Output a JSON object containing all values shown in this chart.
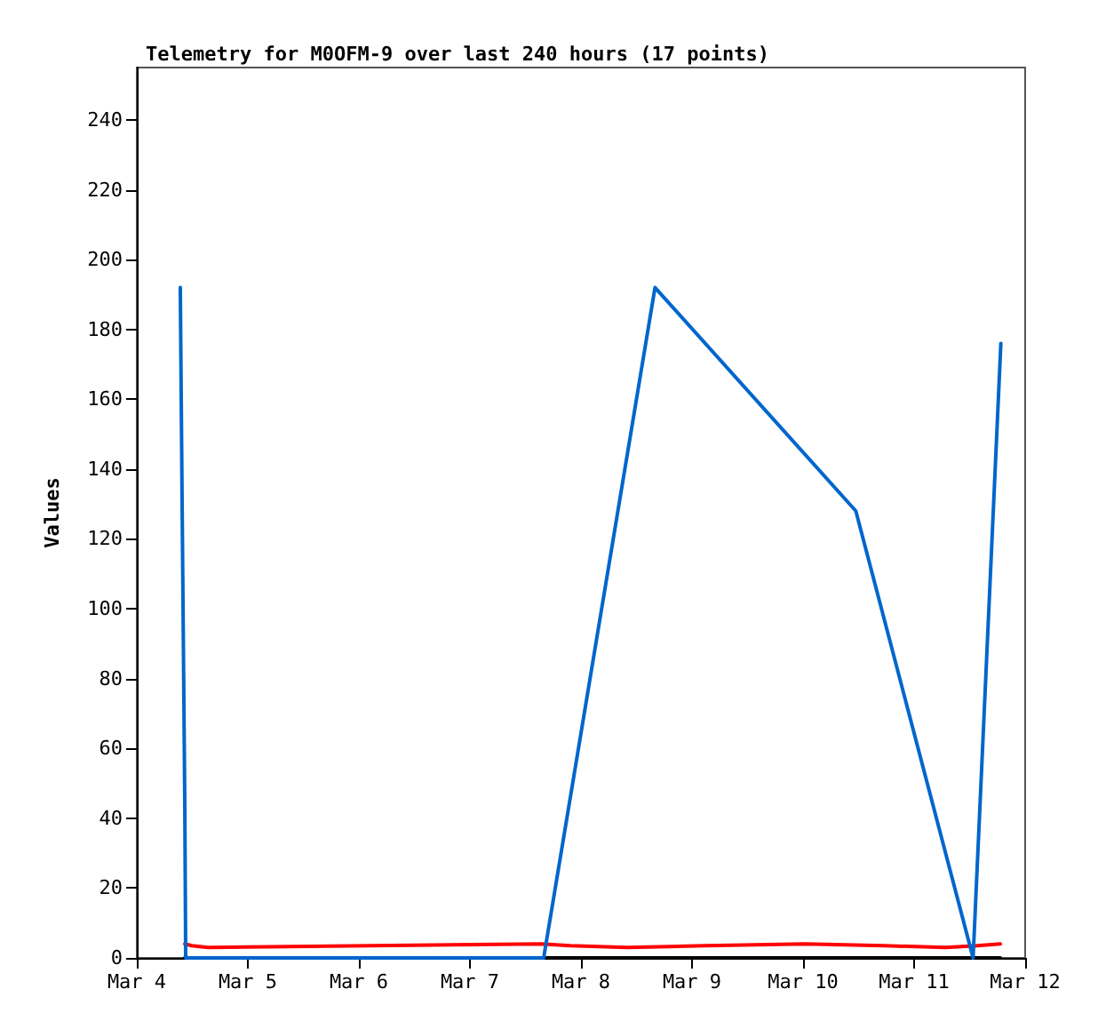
{
  "chart_data": {
    "type": "line",
    "title": "Telemetry for M0OFM-9 over last 240 hours (17 points)",
    "ylabel": "Values",
    "xlim": [
      "--03-04",
      "--03-12"
    ],
    "xticks": [
      {
        "value": "--03-04",
        "label": "Mar 4"
      },
      {
        "value": "--03-05",
        "label": "Mar 5"
      },
      {
        "value": "--03-06",
        "label": "Mar 6"
      },
      {
        "value": "--03-07",
        "label": "Mar 7"
      },
      {
        "value": "--03-08",
        "label": "Mar 8"
      },
      {
        "value": "--03-09",
        "label": "Mar 9"
      },
      {
        "value": "--03-10",
        "label": "Mar 10"
      },
      {
        "value": "--03-11",
        "label": "Mar 11"
      },
      {
        "value": "--03-12",
        "label": "Mar 12"
      }
    ],
    "ylim": [
      0,
      255
    ],
    "yticks": [
      0,
      20,
      40,
      60,
      80,
      100,
      120,
      140,
      160,
      180,
      200,
      220,
      240
    ],
    "grid": false,
    "marker": "none",
    "line_style": "solid",
    "series": [
      {
        "color": "#000000",
        "x": [
          "--03-04T10:22",
          "--03-11T18:38"
        ],
        "values": [
          0,
          0
        ]
      },
      {
        "color": "#ff0000",
        "x": [
          "--03-04T10:22",
          "--03-04T11:54",
          "--03-04T15:22",
          "--03-07T15:26",
          "--03-07T21:42",
          "--03-08T09:59",
          "--03-09T02:53",
          "--03-10T00:23",
          "--03-10T17:40",
          "--03-11T06:43",
          "--03-11T13:38",
          "--03-11T18:38"
        ],
        "values": [
          4,
          3.5,
          3,
          4,
          3.5,
          3,
          3.5,
          4,
          3.5,
          3,
          3.5,
          4
        ]
      },
      {
        "color": "#0066cc",
        "x": [
          "--03-04T09:24",
          "--03-04T09:47",
          "--03-04T10:22",
          "--03-04T10:34",
          "--03-07T15:56",
          "--03-08T16:00",
          "--03-10T11:24",
          "--03-11T12:45",
          "--03-11T18:45"
        ],
        "values": [
          192,
          132,
          45,
          0,
          0,
          192,
          128,
          0,
          176
        ]
      }
    ]
  }
}
